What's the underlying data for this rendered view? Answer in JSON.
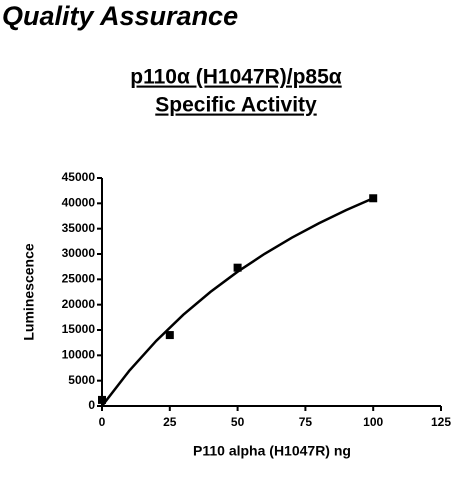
{
  "header": {
    "title": "Quality Assurance"
  },
  "chart_data": {
    "type": "scatter",
    "title": "p110α (H1047R)/p85α",
    "subtitle": "Specific Activity",
    "x_label": "P110 alpha (H1047R) ng",
    "y_label": "Luminescence",
    "series": [
      {
        "type": "scatter",
        "marker": "square",
        "color": "#000000",
        "x": [
          0,
          25,
          50,
          100
        ],
        "values": [
          1200,
          14000,
          27300,
          41000
        ]
      },
      {
        "type": "line",
        "color": "#000000",
        "x": [
          0,
          10,
          20,
          30,
          40,
          50,
          60,
          70,
          80,
          90,
          100
        ],
        "values": [
          0,
          6923,
          12863,
          18014,
          22524,
          26505,
          30047,
          33216,
          36070,
          38652,
          41000
        ]
      }
    ],
    "xlim": [
      0,
      125
    ],
    "xticks": [
      0,
      25,
      50,
      75,
      100,
      125
    ],
    "ylim": [
      0,
      45000
    ],
    "yticks": [
      0,
      5000,
      10000,
      15000,
      20000,
      25000,
      30000,
      35000,
      40000,
      45000
    ],
    "grid": false
  }
}
